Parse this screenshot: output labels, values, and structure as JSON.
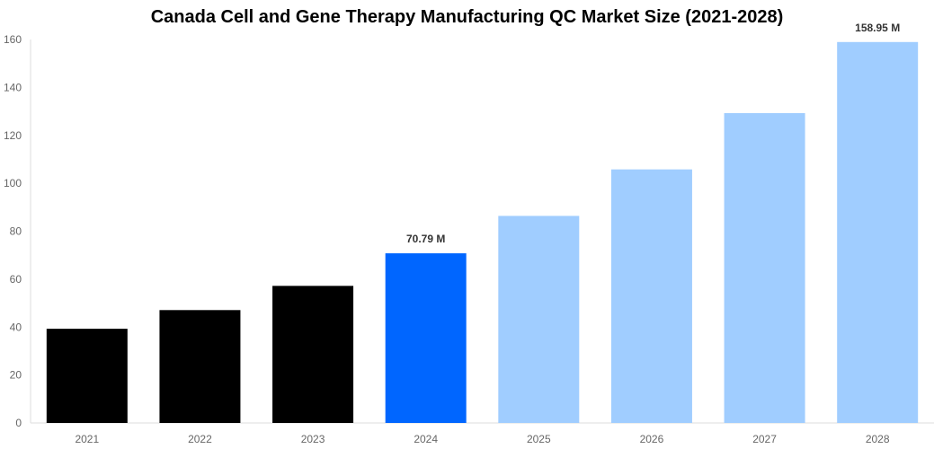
{
  "chart_data": {
    "type": "bar",
    "title": "Canada Cell and Gene Therapy Manufacturing QC Market Size (2021-2028)",
    "xlabel": "",
    "ylabel": "",
    "categories": [
      "2021",
      "2022",
      "2023",
      "2024",
      "2025",
      "2026",
      "2027",
      "2028"
    ],
    "values": [
      39.3,
      47.1,
      57.2,
      70.79,
      86.4,
      105.8,
      129.3,
      158.95
    ],
    "data_labels": {
      "3": "70.79 M",
      "7": "158.95 M"
    },
    "bar_colors": [
      "#000000",
      "#000000",
      "#000000",
      "#0066ff",
      "#a0cdff",
      "#a0cdff",
      "#a0cdff",
      "#a0cdff"
    ],
    "ylim": [
      0,
      160
    ],
    "yticks": [
      0,
      20,
      40,
      60,
      80,
      100,
      120,
      140,
      160
    ],
    "grid": false,
    "legend": "none"
  }
}
